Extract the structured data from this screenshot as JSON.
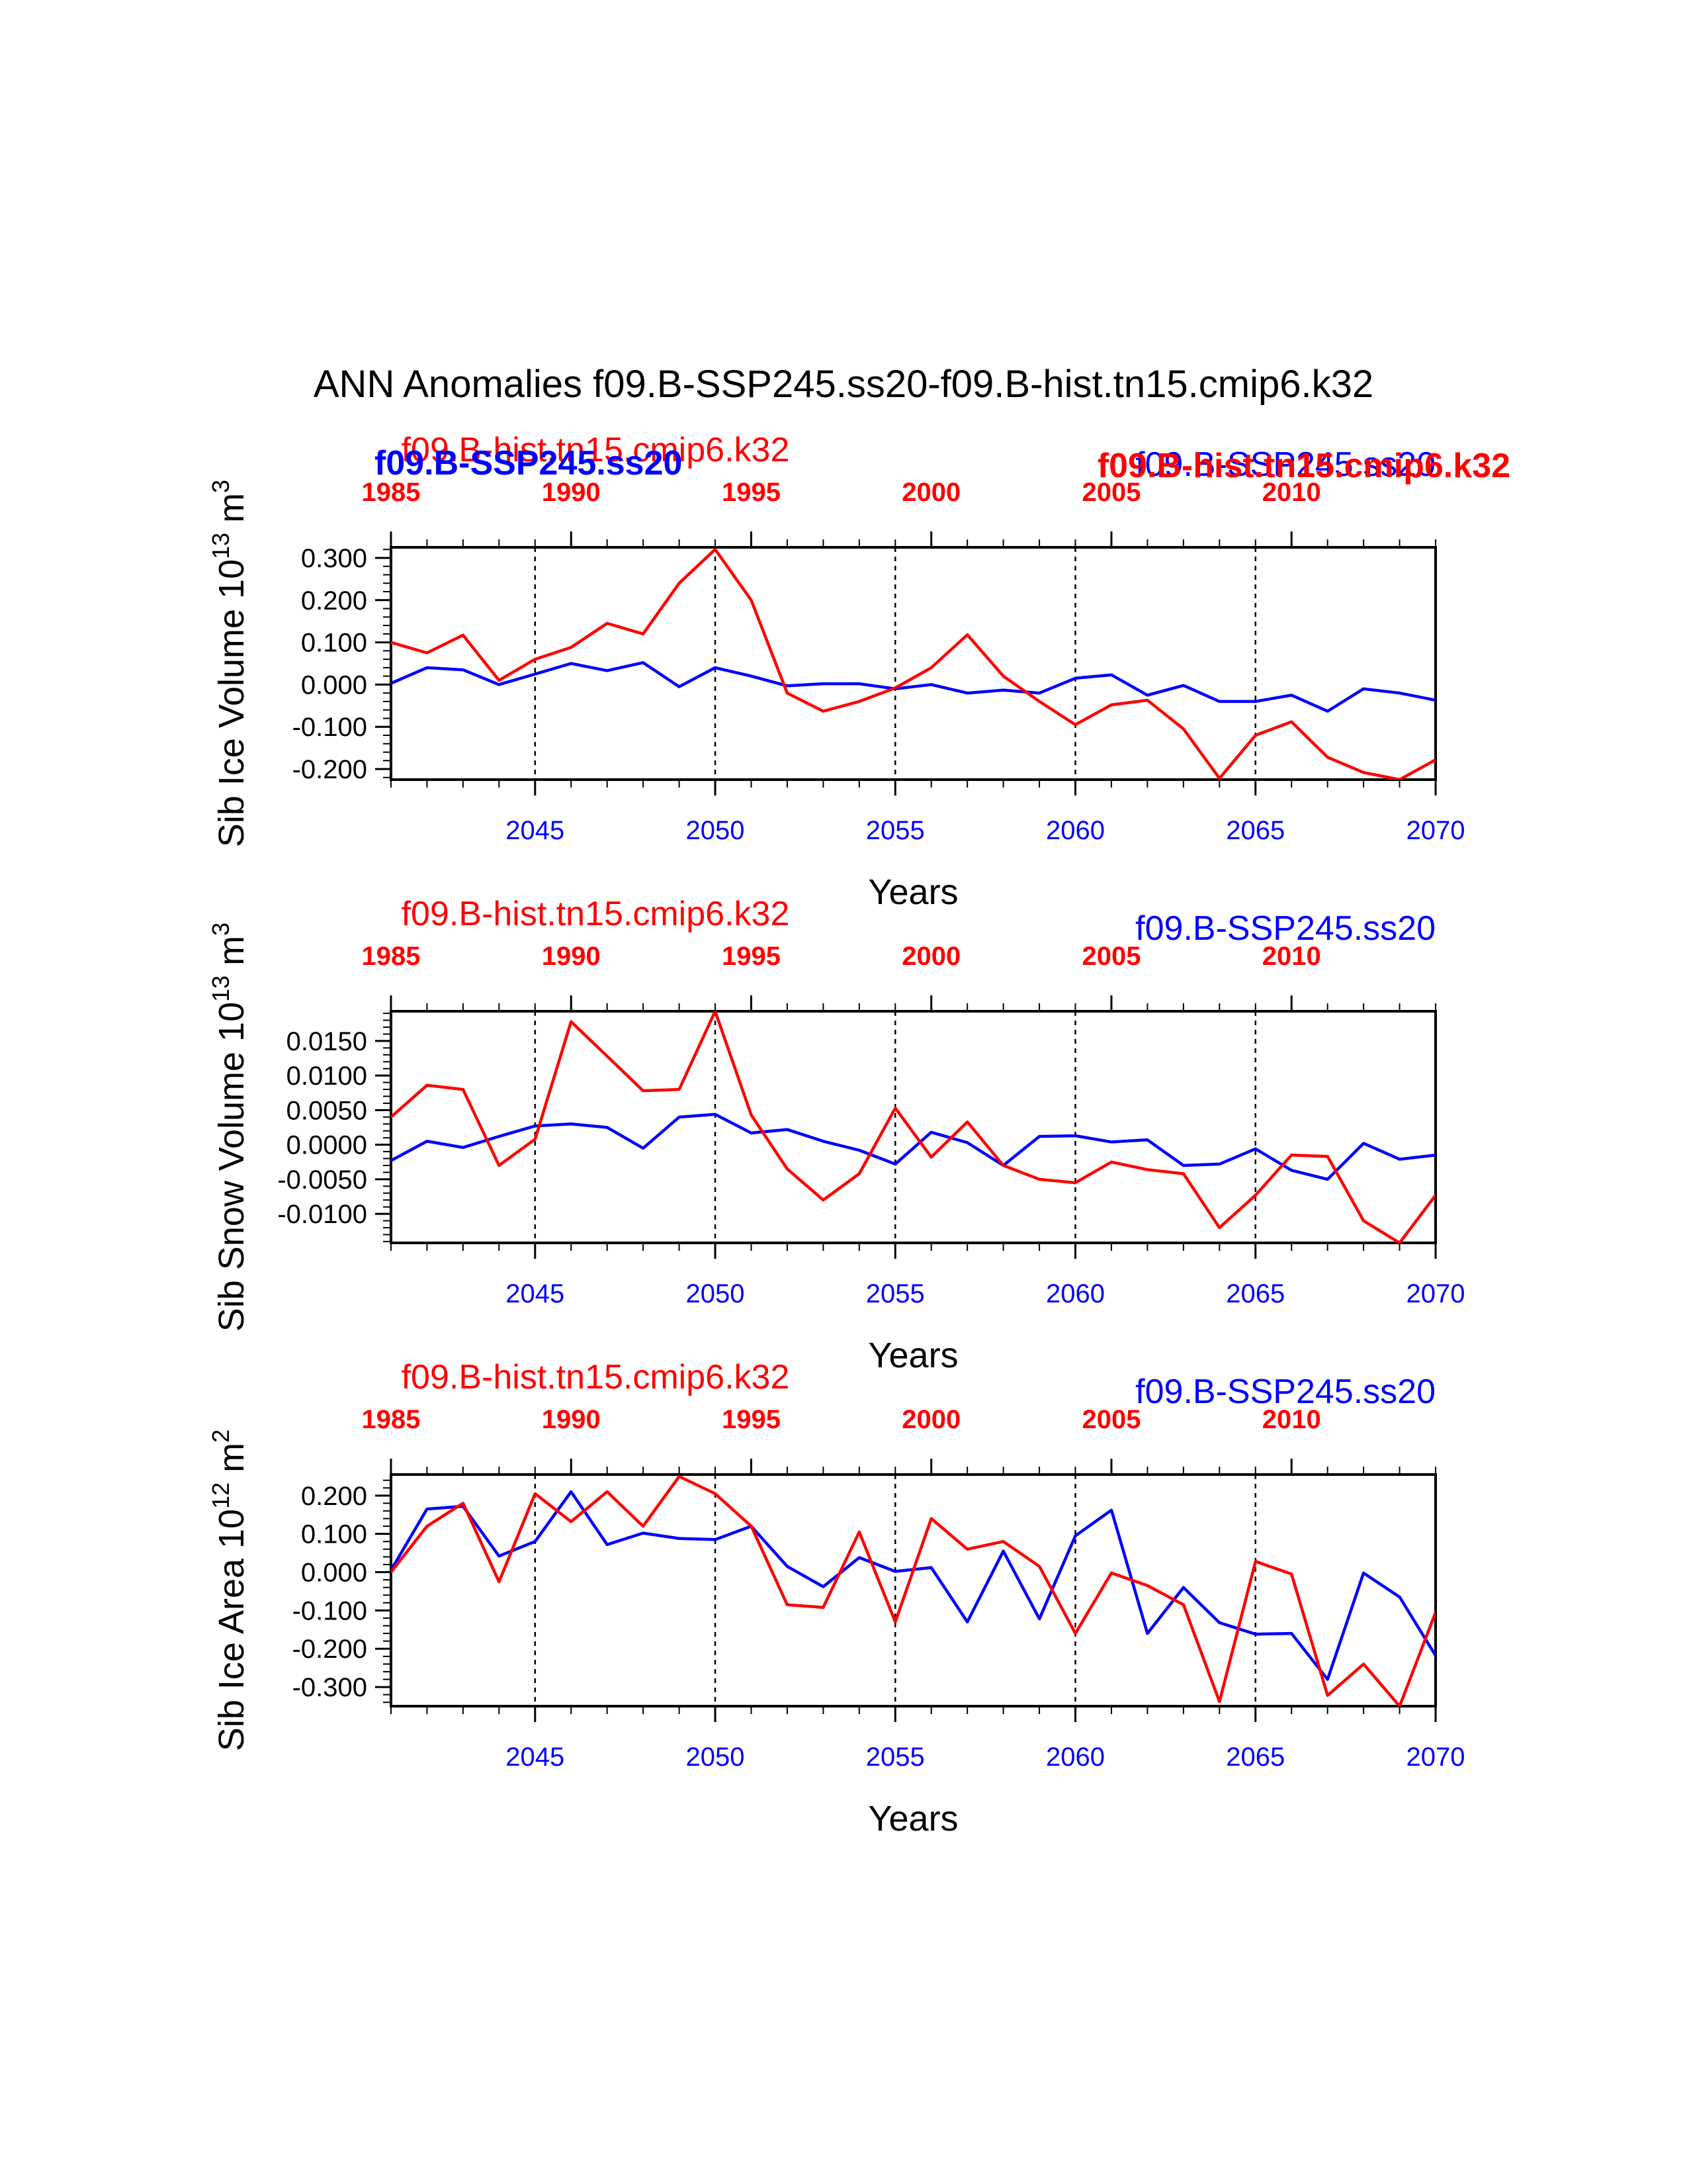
{
  "main_title": "ANN Anomalies f09.B-SSP245.ss20-f09.B-hist.tn15.cmip6.k32",
  "colors": {
    "case1": "#0000ff",
    "case2": "#ff0000",
    "axis": "#000000"
  },
  "chart_data": [
    {
      "type": "line",
      "ylabel": "Sib Ice Volume 10",
      "ylabel_exp": "13",
      "ylabel_unit": " m",
      "ylabel_unit_exp": "3",
      "xlabel": "Years",
      "xlim": [
        2041,
        2070
      ],
      "ylim": [
        -0.225,
        0.325
      ],
      "yticks": [
        -0.2,
        -0.1,
        0.0,
        0.1,
        0.2,
        0.3
      ],
      "ytick_labels": [
        "-0.200",
        "-0.100",
        "0.000",
        "0.100",
        "0.200",
        "0.300"
      ],
      "yminor_step": 0.02,
      "xticks": [
        2045,
        2050,
        2055,
        2060,
        2065,
        2070
      ],
      "xtick_labels": [
        "2045",
        "2050",
        "2055",
        "2060",
        "2065",
        "2070"
      ],
      "top_ticks": [
        1985,
        1990,
        1995,
        2000,
        2005,
        2010
      ],
      "top_tick_labels": [
        "1985",
        "1990",
        "1995",
        "2000",
        "2005",
        "2010"
      ],
      "top_offset": -56,
      "vlines": [
        2045,
        2050,
        2055,
        2060,
        2065
      ],
      "label_case2_left": "f09.B-hist.tn15.cmip6.k32",
      "label_case1_left": "f09.B-SSP245.ss20",
      "label_case1_right": "f09.B-SSP245.ss20",
      "label_case2_right": "f09.B-hist.tn15.cmip6.k32",
      "series": [
        {
          "name": "f09.B-SSP245.ss20",
          "color": "#0000ff",
          "x": [
            2041,
            2042,
            2043,
            2044,
            2045,
            2046,
            2047,
            2048,
            2049,
            2050,
            2051,
            2052,
            2053,
            2054,
            2055,
            2056,
            2057,
            2058,
            2059,
            2060,
            2061,
            2062,
            2063,
            2064,
            2065,
            2066,
            2067,
            2068,
            2069,
            2070
          ],
          "values": [
            0.003,
            0.04,
            0.035,
            0.0,
            0.025,
            0.05,
            0.033,
            0.052,
            -0.005,
            0.04,
            0.02,
            -0.003,
            0.002,
            0.002,
            -0.01,
            0.0,
            -0.02,
            -0.013,
            -0.02,
            0.015,
            0.023,
            -0.025,
            -0.002,
            -0.04,
            -0.04,
            -0.025,
            -0.063,
            -0.01,
            -0.02,
            -0.037
          ]
        },
        {
          "name": "f09.B-hist.tn15.cmip6.k32",
          "color": "#ff0000",
          "x": [
            2041,
            2042,
            2043,
            2044,
            2045,
            2046,
            2047,
            2048,
            2049,
            2050,
            2051,
            2052,
            2053,
            2054,
            2055,
            2056,
            2057,
            2058,
            2059,
            2060,
            2061,
            2062,
            2063,
            2064,
            2065,
            2066,
            2067,
            2068,
            2069,
            2070
          ],
          "values": [
            0.1,
            0.075,
            0.117,
            0.01,
            0.06,
            0.088,
            0.145,
            0.12,
            0.24,
            0.32,
            0.2,
            -0.02,
            -0.063,
            -0.04,
            -0.008,
            0.04,
            0.118,
            0.02,
            -0.04,
            -0.095,
            -0.048,
            -0.037,
            -0.105,
            -0.222,
            -0.12,
            -0.088,
            -0.172,
            -0.208,
            -0.225,
            -0.178
          ]
        }
      ]
    },
    {
      "type": "line",
      "ylabel": "Sib Snow Volume 10",
      "ylabel_exp": "13",
      "ylabel_unit": " m",
      "ylabel_unit_exp": "3",
      "xlabel": "Years",
      "xlim": [
        2041,
        2070
      ],
      "ylim": [
        -0.0142,
        0.0193
      ],
      "yticks": [
        -0.01,
        -0.005,
        0.0,
        0.005,
        0.01,
        0.015
      ],
      "ytick_labels": [
        "-0.0100",
        "-0.0050",
        "0.0000",
        "0.0050",
        "0.0100",
        "0.0150"
      ],
      "yminor_step": 0.001,
      "xticks": [
        2045,
        2050,
        2055,
        2060,
        2065,
        2070
      ],
      "xtick_labels": [
        "2045",
        "2050",
        "2055",
        "2060",
        "2065",
        "2070"
      ],
      "top_ticks": [
        1985,
        1990,
        1995,
        2000,
        2005,
        2010
      ],
      "top_tick_labels": [
        "1985",
        "1990",
        "1995",
        "2000",
        "2005",
        "2010"
      ],
      "top_offset": -56,
      "vlines": [
        2045,
        2050,
        2055,
        2060,
        2065
      ],
      "label_case2_left": "f09.B-hist.tn15.cmip6.k32",
      "label_case1_right": "f09.B-SSP245.ss20",
      "series": [
        {
          "name": "f09.B-SSP245.ss20",
          "color": "#0000ff",
          "x": [
            2041,
            2042,
            2043,
            2044,
            2045,
            2046,
            2047,
            2048,
            2049,
            2050,
            2051,
            2052,
            2053,
            2054,
            2055,
            2056,
            2057,
            2058,
            2059,
            2060,
            2061,
            2062,
            2063,
            2064,
            2065,
            2066,
            2067,
            2068,
            2069,
            2070
          ],
          "values": [
            -0.0023,
            0.0005,
            -0.0004,
            0.0012,
            0.0027,
            0.003,
            0.0025,
            -0.0005,
            0.004,
            0.0044,
            0.0017,
            0.0022,
            0.0005,
            -0.0008,
            -0.0028,
            0.0018,
            0.0003,
            -0.003,
            0.0012,
            0.0013,
            0.0004,
            0.0007,
            -0.003,
            -0.0028,
            -0.0006,
            -0.0037,
            -0.005,
            0.0002,
            -0.0021,
            -0.0015
          ]
        },
        {
          "name": "f09.B-hist.tn15.cmip6.k32",
          "color": "#ff0000",
          "x": [
            2041,
            2042,
            2043,
            2044,
            2045,
            2046,
            2047,
            2048,
            2049,
            2050,
            2051,
            2052,
            2053,
            2054,
            2055,
            2056,
            2057,
            2058,
            2059,
            2060,
            2061,
            2062,
            2063,
            2064,
            2065,
            2066,
            2067,
            2068,
            2069,
            2070
          ],
          "values": [
            0.004,
            0.0086,
            0.008,
            -0.003,
            0.0008,
            0.0178,
            0.0128,
            0.0078,
            0.008,
            0.0193,
            0.0043,
            -0.0035,
            -0.008,
            -0.0042,
            0.0053,
            -0.0018,
            0.0033,
            -0.003,
            -0.005,
            -0.0055,
            -0.0025,
            -0.0036,
            -0.0042,
            -0.012,
            -0.0073,
            -0.0015,
            -0.0017,
            -0.011,
            -0.0142,
            -0.0073
          ]
        }
      ]
    },
    {
      "type": "line",
      "ylabel": "Sib Ice Area 10",
      "ylabel_exp": "12",
      "ylabel_unit": " m",
      "ylabel_unit_exp": "2",
      "xlabel": "Years",
      "xlim": [
        2041,
        2070
      ],
      "ylim": [
        -0.35,
        0.255
      ],
      "yticks": [
        -0.3,
        -0.2,
        -0.1,
        0.0,
        0.1,
        0.2
      ],
      "ytick_labels": [
        "-0.300",
        "-0.200",
        "-0.100",
        "0.000",
        "0.100",
        "0.200"
      ],
      "yminor_step": 0.02,
      "xticks": [
        2045,
        2050,
        2055,
        2060,
        2065,
        2070
      ],
      "xtick_labels": [
        "2045",
        "2050",
        "2055",
        "2060",
        "2065",
        "2070"
      ],
      "top_ticks": [
        1985,
        1990,
        1995,
        2000,
        2005,
        2010
      ],
      "top_tick_labels": [
        "1985",
        "1990",
        "1995",
        "2000",
        "2005",
        "2010"
      ],
      "top_offset": -56,
      "vlines": [
        2045,
        2050,
        2055,
        2060,
        2065
      ],
      "label_case2_left": "f09.B-hist.tn15.cmip6.k32",
      "label_case1_right": "f09.B-SSP245.ss20",
      "series": [
        {
          "name": "f09.B-SSP245.ss20",
          "color": "#0000ff",
          "x": [
            2041,
            2042,
            2043,
            2044,
            2045,
            2046,
            2047,
            2048,
            2049,
            2050,
            2051,
            2052,
            2053,
            2054,
            2055,
            2056,
            2057,
            2058,
            2059,
            2060,
            2061,
            2062,
            2063,
            2064,
            2065,
            2066,
            2067,
            2068,
            2069,
            2070
          ],
          "values": [
            0.005,
            0.165,
            0.172,
            0.042,
            0.08,
            0.21,
            0.072,
            0.102,
            0.088,
            0.085,
            0.12,
            0.015,
            -0.038,
            0.038,
            0.002,
            0.012,
            -0.13,
            0.055,
            -0.122,
            0.095,
            0.162,
            -0.16,
            -0.04,
            -0.132,
            -0.162,
            -0.16,
            -0.28,
            -0.002,
            -0.065,
            -0.218
          ]
        },
        {
          "name": "f09.B-hist.tn15.cmip6.k32",
          "color": "#ff0000",
          "x": [
            2041,
            2042,
            2043,
            2044,
            2045,
            2046,
            2047,
            2048,
            2049,
            2050,
            2051,
            2052,
            2053,
            2054,
            2055,
            2056,
            2057,
            2058,
            2059,
            2060,
            2061,
            2062,
            2063,
            2064,
            2065,
            2066,
            2067,
            2068,
            2069,
            2070
          ],
          "values": [
            0.0,
            0.12,
            0.18,
            -0.025,
            0.205,
            0.132,
            0.21,
            0.12,
            0.25,
            0.205,
            0.12,
            -0.085,
            -0.092,
            0.105,
            -0.13,
            0.14,
            0.06,
            0.08,
            0.015,
            -0.16,
            -0.002,
            -0.035,
            -0.085,
            -0.338,
            0.028,
            -0.005,
            -0.322,
            -0.24,
            -0.35,
            -0.105
          ]
        }
      ]
    }
  ]
}
